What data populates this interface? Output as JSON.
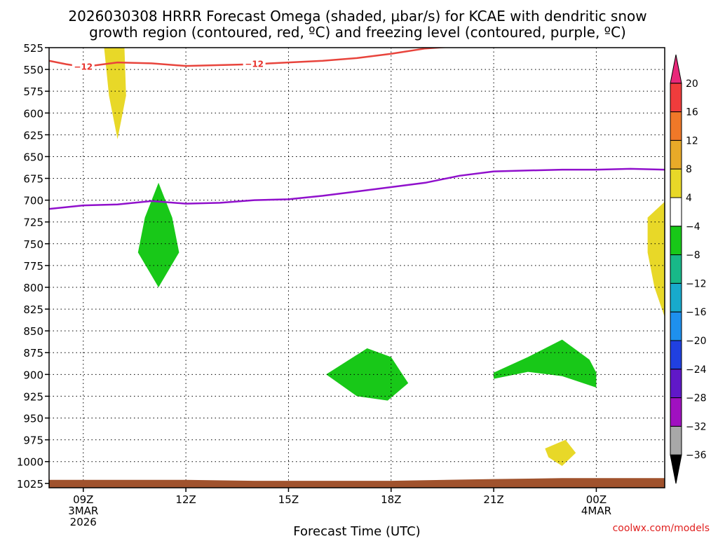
{
  "chart_data": {
    "type": "heatmap",
    "title_line1": "2026030308 HRRR Forecast Omega (shaded, μbar/s) for KCAE with dendritic snow",
    "title_line2": "growth region (contoured, red, ºC) and freezing level (contoured, purple, ºC)",
    "xlabel": "Forecast Time (UTC)",
    "credit": "coolwx.com/models",
    "x_unit": "hours after 2026-03-03 09Z",
    "xlim": [
      -1,
      17
    ],
    "ylim": [
      525,
      1030
    ],
    "y_ticks": [
      525,
      550,
      575,
      600,
      625,
      650,
      675,
      700,
      725,
      750,
      775,
      800,
      825,
      850,
      875,
      900,
      925,
      950,
      975,
      1000,
      1025
    ],
    "x_ticks": [
      {
        "x": 0,
        "lines": [
          "09Z",
          "3MAR",
          "2026"
        ]
      },
      {
        "x": 3,
        "lines": [
          "12Z"
        ]
      },
      {
        "x": 6,
        "lines": [
          "15Z"
        ]
      },
      {
        "x": 9,
        "lines": [
          "18Z"
        ]
      },
      {
        "x": 12,
        "lines": [
          "21Z"
        ]
      },
      {
        "x": 15,
        "lines": [
          "00Z",
          "4MAR"
        ]
      }
    ],
    "grid": true,
    "colorbar": {
      "labels": [
        "20",
        "16",
        "12",
        "8",
        "4",
        "−4",
        "−8",
        "−12",
        "−16",
        "−20",
        "−24",
        "−28",
        "−32",
        "−36"
      ],
      "colors": [
        "#e8287a",
        "#f03c3c",
        "#f07828",
        "#e8aa28",
        "#e8d828",
        "#ffffff",
        "#18c818",
        "#18b888",
        "#18aacc",
        "#1e90ee",
        "#2040e0",
        "#6018c8",
        "#a010c0",
        "#a8a8a8",
        "#000000"
      ]
    },
    "snow_growth_contour": {
      "label": "−12",
      "color": "#e8443c",
      "points": [
        [
          -1,
          540
        ],
        [
          -0.5,
          544
        ],
        [
          0,
          547
        ],
        [
          1,
          542
        ],
        [
          2,
          543
        ],
        [
          3,
          546
        ],
        [
          4,
          545
        ],
        [
          5,
          544
        ],
        [
          6,
          542
        ],
        [
          7,
          540
        ],
        [
          8,
          537
        ],
        [
          9,
          532
        ],
        [
          10,
          526
        ],
        [
          10.7,
          524
        ]
      ],
      "label_x": [
        0,
        5
      ]
    },
    "freezing_level": {
      "color": "#9010cc",
      "points": [
        [
          -1,
          710
        ],
        [
          0,
          706
        ],
        [
          1,
          705
        ],
        [
          2,
          701
        ],
        [
          3,
          704
        ],
        [
          4,
          703
        ],
        [
          5,
          700
        ],
        [
          6,
          699
        ],
        [
          7,
          695
        ],
        [
          8,
          690
        ],
        [
          9,
          685
        ],
        [
          10,
          680
        ],
        [
          11,
          672
        ],
        [
          12,
          667
        ],
        [
          13,
          666
        ],
        [
          14,
          665
        ],
        [
          15,
          665
        ],
        [
          16,
          664
        ],
        [
          17,
          665
        ]
      ]
    },
    "omega_regions": [
      {
        "value": "4 to 8",
        "color": "#e8d828",
        "points": [
          [
            0.6,
            521
          ],
          [
            1.2,
            521
          ],
          [
            1.25,
            580
          ],
          [
            1.0,
            630
          ],
          [
            0.75,
            580
          ]
        ]
      },
      {
        "value": "-4 to -8",
        "color": "#18c818",
        "points": [
          [
            2.2,
            680
          ],
          [
            2.6,
            720
          ],
          [
            2.8,
            760
          ],
          [
            2.2,
            800
          ],
          [
            1.6,
            760
          ],
          [
            1.8,
            720
          ]
        ]
      },
      {
        "value": "-4 to -8",
        "color": "#18c818",
        "points": [
          [
            8.3,
            870
          ],
          [
            9.0,
            880
          ],
          [
            9.5,
            910
          ],
          [
            8.9,
            930
          ],
          [
            8.0,
            925
          ],
          [
            7.1,
            900
          ]
        ]
      },
      {
        "value": "-4 to -8",
        "color": "#18c818",
        "points": [
          [
            12.0,
            898
          ],
          [
            13.0,
            880
          ],
          [
            14.0,
            860
          ],
          [
            14.8,
            883
          ],
          [
            15.0,
            898
          ],
          [
            15.0,
            915
          ],
          [
            14.0,
            902
          ],
          [
            13.0,
            897
          ],
          [
            12.0,
            905
          ]
        ]
      },
      {
        "value": "4 to 8",
        "color": "#e8d828",
        "points": [
          [
            13.5,
            985
          ],
          [
            14.1,
            975
          ],
          [
            14.4,
            990
          ],
          [
            14.0,
            1005
          ],
          [
            13.6,
            995
          ]
        ]
      },
      {
        "value": "4 to 8",
        "color": "#e8d828",
        "points": [
          [
            16.5,
            720
          ],
          [
            17.05,
            700
          ],
          [
            17.05,
            840
          ],
          [
            16.7,
            800
          ],
          [
            16.5,
            760
          ]
        ]
      }
    ],
    "ground": {
      "color": "#a0522d",
      "points": [
        [
          -1,
          1021
        ],
        [
          3,
          1021
        ],
        [
          5,
          1022
        ],
        [
          9,
          1022
        ],
        [
          12,
          1020
        ],
        [
          14,
          1019
        ],
        [
          17,
          1019
        ]
      ]
    }
  }
}
